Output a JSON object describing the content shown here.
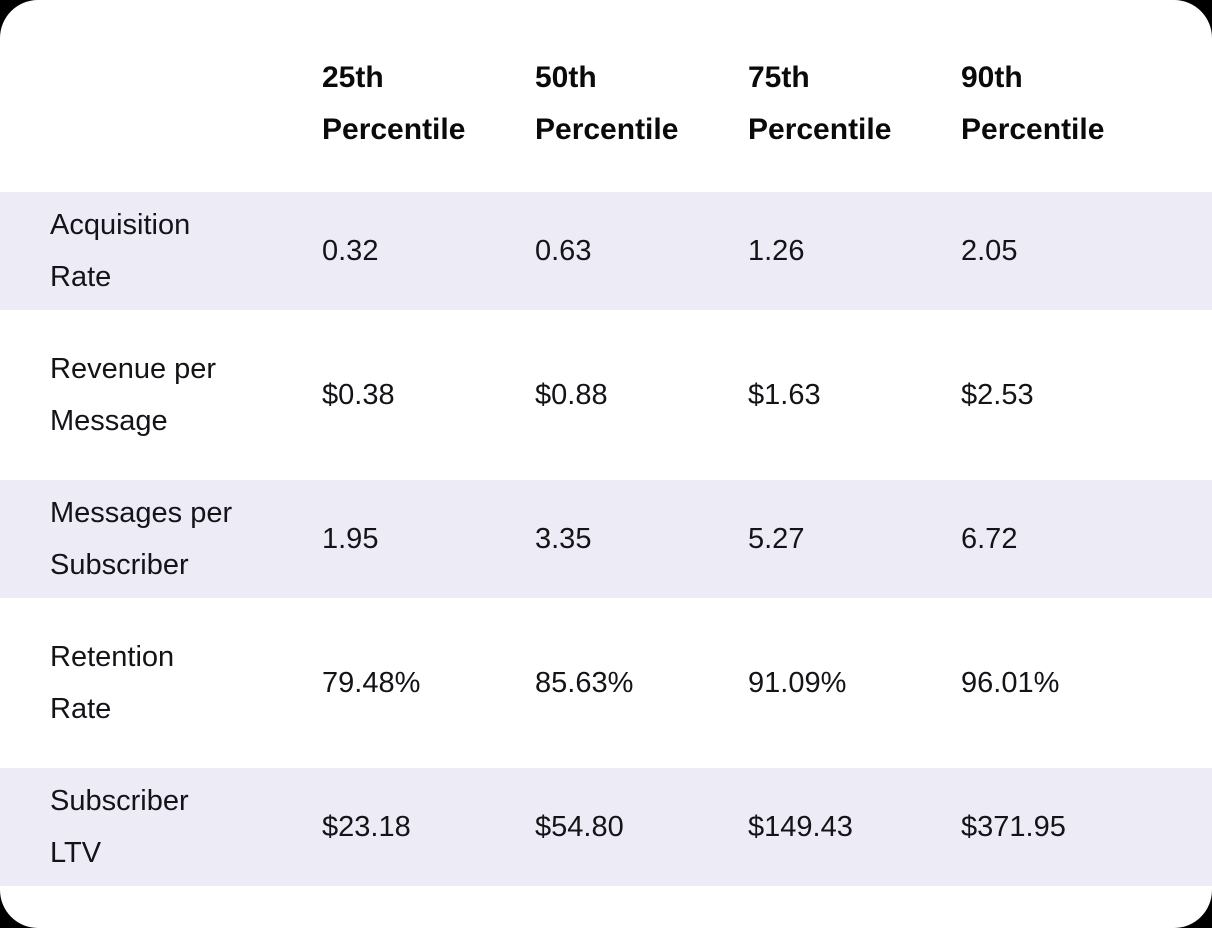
{
  "colors": {
    "page_background": "#000000",
    "card_background": "#FFFFFF",
    "row_stripe": "#ECEBF6",
    "header_text": "#0A0A0C",
    "body_text": "#141418"
  },
  "chart_data": {
    "type": "table",
    "title": "",
    "corner_header": "",
    "columns": [
      "25th\nPercentile",
      "50th\nPercentile",
      "75th\nPercentile",
      "90th\nPercentile"
    ],
    "rows": [
      {
        "label": "Acquisition\nRate",
        "values": [
          "0.32",
          "0.63",
          "1.26",
          "2.05"
        ]
      },
      {
        "label": "Revenue per\nMessage",
        "values": [
          "$0.38",
          "$0.88",
          "$1.63",
          "$2.53"
        ]
      },
      {
        "label": "Messages per\nSubscriber",
        "values": [
          "1.95",
          "3.35",
          "5.27",
          "6.72"
        ]
      },
      {
        "label": "Retention\nRate",
        "values": [
          "79.48%",
          "85.63%",
          "91.09%",
          "96.01%"
        ]
      },
      {
        "label": "Subscriber\nLTV",
        "values": [
          "$23.18",
          "$54.80",
          "$149.43",
          "$371.95"
        ]
      }
    ],
    "layout": {
      "stripe_rows": "odd",
      "grid": false,
      "first_column_is_row_label": true
    }
  }
}
